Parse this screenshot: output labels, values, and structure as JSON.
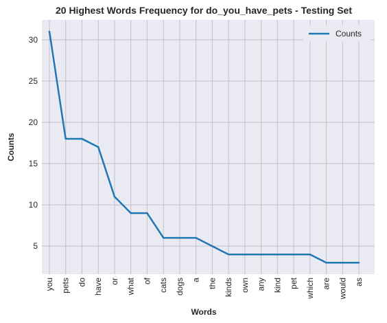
{
  "chart_data": {
    "type": "line",
    "title": "20 Highest Words Frequency for do_you_have_pets - Testing Set",
    "xlabel": "Words",
    "ylabel": "Counts",
    "categories": [
      "you",
      "pets",
      "do",
      "have",
      "or",
      "what",
      "of",
      "cats",
      "dogs",
      "a",
      "the",
      "kinds",
      "own",
      "any",
      "kind",
      "pet",
      "which",
      "are",
      "would",
      "as"
    ],
    "series": [
      {
        "name": "Counts",
        "values": [
          31,
          18,
          18,
          17,
          11,
          9,
          9,
          6,
          6,
          6,
          5,
          4,
          4,
          4,
          4,
          4,
          4,
          3,
          3,
          3
        ]
      }
    ],
    "ylim": [
      1.6,
      32.4
    ],
    "yticks": [
      5,
      10,
      15,
      20,
      25,
      30
    ],
    "grid": true,
    "legend": "top-right",
    "colors": {
      "line": "#1f77b4",
      "background": "#eaeaf2",
      "grid": "#c0c0c8"
    }
  }
}
